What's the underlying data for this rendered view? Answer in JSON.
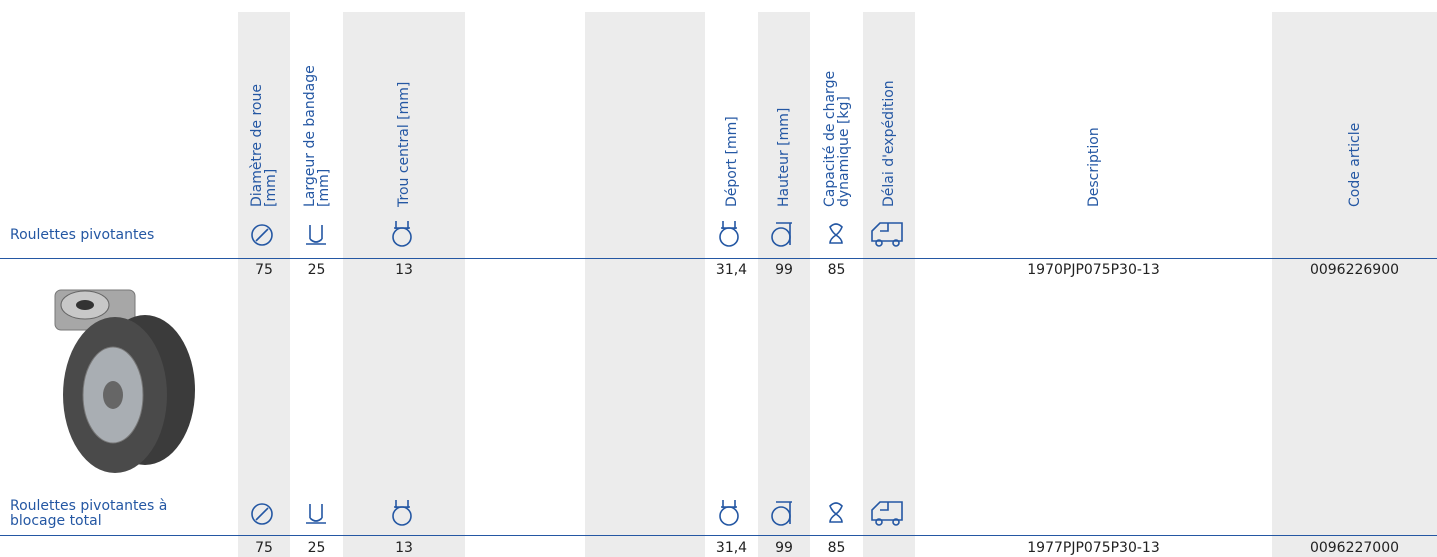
{
  "columns": [
    {
      "header": [
        "Diamètre de roue",
        "[mm]"
      ]
    },
    {
      "header": [
        "Largeur de bandage",
        "[mm]"
      ]
    },
    {
      "header": [
        "Trou central [mm]"
      ]
    },
    {
      "header": null
    },
    {
      "header": null
    },
    {
      "header": [
        "Déport [mm]"
      ]
    },
    {
      "header": [
        "Hauteur [mm]"
      ]
    },
    {
      "header": [
        "Capacité de charge",
        "dynamique [kg]"
      ]
    },
    {
      "header": [
        "Délai d'expédition"
      ]
    },
    {
      "header": [
        "Description"
      ]
    },
    {
      "header": [
        "Code article"
      ]
    }
  ],
  "sections": [
    {
      "label": "Roulettes pivotantes",
      "cells": [
        "75",
        "25",
        "13",
        null,
        null,
        "31,4",
        "99",
        "85",
        null,
        "1970PJP075P30-13",
        "0096226900"
      ]
    },
    {
      "label": "Roulettes pivotantes à blocage total",
      "cells": [
        "75",
        "25",
        "13",
        null,
        null,
        "31,4",
        "99",
        "85",
        null,
        "1977PJP075P30-13",
        "0096227000"
      ]
    }
  ]
}
